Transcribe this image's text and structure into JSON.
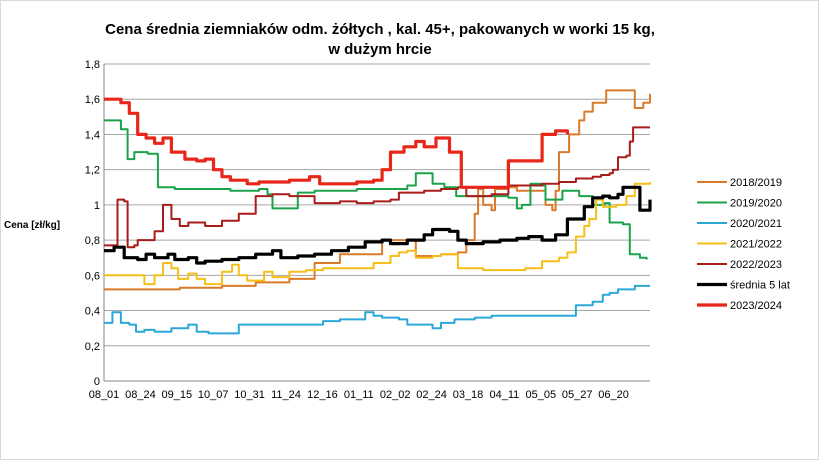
{
  "chart_data": {
    "type": "line",
    "title_line1": "Cena średnia ziemniaków odm. żółtych , kal. 45+, pakowanych w worki 15 kg,",
    "title_line2": "w dużym hrcie",
    "ylabel": "Cena [zł/kg]",
    "xlabel": "",
    "ylim": [
      0,
      1.8
    ],
    "y_ticks": [
      "0",
      "0,2",
      "0,4",
      "0,6",
      "0,8",
      "1",
      "1,2",
      "1,4",
      "1,6",
      "1,8"
    ],
    "x_ticks": [
      "08_01",
      "08_24",
      "09_15",
      "10_07",
      "10_31",
      "11_24",
      "12_16",
      "01_11",
      "02_02",
      "02_24",
      "03_18",
      "04_11",
      "05_05",
      "05_27",
      "06_20"
    ],
    "grid": "horizontal",
    "legend_position": "right",
    "x_domain": [
      0,
      324
    ],
    "series": [
      {
        "name": "2018/2019",
        "color": "#d97b2a",
        "width": 2,
        "points": [
          [
            0,
            0.52
          ],
          [
            30,
            0.52
          ],
          [
            45,
            0.53
          ],
          [
            70,
            0.54
          ],
          [
            90,
            0.56
          ],
          [
            110,
            0.58
          ],
          [
            125,
            0.67
          ],
          [
            140,
            0.72
          ],
          [
            165,
            0.8
          ],
          [
            175,
            0.8
          ],
          [
            185,
            0.71
          ],
          [
            200,
            0.72
          ],
          [
            210,
            0.73
          ],
          [
            215,
            0.8
          ],
          [
            220,
            0.95
          ],
          [
            222,
            1.09
          ],
          [
            225,
            1.0
          ],
          [
            230,
            0.97
          ],
          [
            232,
            1.09
          ],
          [
            240,
            1.1
          ],
          [
            245,
            1.08
          ],
          [
            258,
            1.08
          ],
          [
            262,
            1.0
          ],
          [
            266,
            0.97
          ],
          [
            268,
            1.08
          ],
          [
            270,
            1.3
          ],
          [
            276,
            1.4
          ],
          [
            282,
            1.48
          ],
          [
            285,
            1.53
          ],
          [
            290,
            1.58
          ],
          [
            298,
            1.65
          ],
          [
            310,
            1.65
          ],
          [
            315,
            1.55
          ],
          [
            320,
            1.58
          ],
          [
            324,
            1.63
          ]
        ]
      },
      {
        "name": "2019/2020",
        "color": "#1aa34a",
        "width": 2,
        "points": [
          [
            0,
            1.48
          ],
          [
            10,
            1.43
          ],
          [
            14,
            1.26
          ],
          [
            18,
            1.3
          ],
          [
            26,
            1.29
          ],
          [
            32,
            1.1
          ],
          [
            42,
            1.09
          ],
          [
            75,
            1.08
          ],
          [
            92,
            1.09
          ],
          [
            97,
            1.06
          ],
          [
            100,
            0.98
          ],
          [
            108,
            0.98
          ],
          [
            115,
            1.07
          ],
          [
            125,
            1.08
          ],
          [
            150,
            1.09
          ],
          [
            180,
            1.11
          ],
          [
            185,
            1.18
          ],
          [
            195,
            1.12
          ],
          [
            202,
            1.1
          ],
          [
            209,
            1.05
          ],
          [
            215,
            1.05
          ],
          [
            240,
            1.04
          ],
          [
            245,
            0.98
          ],
          [
            248,
            1.0
          ],
          [
            253,
            1.12
          ],
          [
            260,
            1.11
          ],
          [
            262,
            1.03
          ],
          [
            268,
            1.03
          ],
          [
            272,
            1.08
          ],
          [
            282,
            1.05
          ],
          [
            290,
            1.0
          ],
          [
            297,
            1.01
          ],
          [
            300,
            0.9
          ],
          [
            308,
            0.89
          ],
          [
            312,
            0.72
          ],
          [
            318,
            0.7
          ],
          [
            322,
            0.69
          ]
        ]
      },
      {
        "name": "2020/2021",
        "color": "#2ba7d8",
        "width": 2,
        "points": [
          [
            0,
            0.33
          ],
          [
            5,
            0.39
          ],
          [
            10,
            0.33
          ],
          [
            15,
            0.32
          ],
          [
            19,
            0.28
          ],
          [
            24,
            0.29
          ],
          [
            30,
            0.28
          ],
          [
            40,
            0.3
          ],
          [
            50,
            0.32
          ],
          [
            55,
            0.28
          ],
          [
            62,
            0.27
          ],
          [
            75,
            0.27
          ],
          [
            80,
            0.32
          ],
          [
            100,
            0.32
          ],
          [
            120,
            0.32
          ],
          [
            130,
            0.34
          ],
          [
            140,
            0.35
          ],
          [
            150,
            0.35
          ],
          [
            155,
            0.39
          ],
          [
            160,
            0.37
          ],
          [
            165,
            0.36
          ],
          [
            175,
            0.35
          ],
          [
            180,
            0.32
          ],
          [
            195,
            0.3
          ],
          [
            200,
            0.33
          ],
          [
            208,
            0.35
          ],
          [
            220,
            0.36
          ],
          [
            230,
            0.37
          ],
          [
            270,
            0.37
          ],
          [
            280,
            0.43
          ],
          [
            290,
            0.45
          ],
          [
            296,
            0.49
          ],
          [
            300,
            0.5
          ],
          [
            305,
            0.52
          ],
          [
            315,
            0.54
          ],
          [
            324,
            0.54
          ]
        ]
      },
      {
        "name": "2021/2022",
        "color": "#f5bf18",
        "width": 2,
        "points": [
          [
            0,
            0.6
          ],
          [
            20,
            0.6
          ],
          [
            24,
            0.55
          ],
          [
            30,
            0.6
          ],
          [
            35,
            0.67
          ],
          [
            40,
            0.64
          ],
          [
            44,
            0.58
          ],
          [
            50,
            0.61
          ],
          [
            55,
            0.58
          ],
          [
            60,
            0.55
          ],
          [
            70,
            0.62
          ],
          [
            76,
            0.66
          ],
          [
            80,
            0.6
          ],
          [
            85,
            0.57
          ],
          [
            90,
            0.57
          ],
          [
            95,
            0.62
          ],
          [
            100,
            0.59
          ],
          [
            110,
            0.62
          ],
          [
            120,
            0.63
          ],
          [
            130,
            0.64
          ],
          [
            150,
            0.64
          ],
          [
            160,
            0.67
          ],
          [
            170,
            0.71
          ],
          [
            175,
            0.73
          ],
          [
            180,
            0.74
          ],
          [
            185,
            0.7
          ],
          [
            195,
            0.71
          ],
          [
            200,
            0.72
          ],
          [
            210,
            0.64
          ],
          [
            225,
            0.63
          ],
          [
            250,
            0.64
          ],
          [
            260,
            0.68
          ],
          [
            270,
            0.7
          ],
          [
            275,
            0.73
          ],
          [
            280,
            0.82
          ],
          [
            285,
            0.88
          ],
          [
            288,
            0.92
          ],
          [
            292,
            1.03
          ],
          [
            296,
            0.99
          ],
          [
            304,
            1.0
          ],
          [
            310,
            1.05
          ],
          [
            315,
            1.12
          ],
          [
            324,
            1.13
          ]
        ]
      },
      {
        "name": "2022/2023",
        "color": "#a81c1c",
        "width": 2,
        "points": [
          [
            0,
            0.77
          ],
          [
            6,
            0.77
          ],
          [
            8,
            1.03
          ],
          [
            12,
            1.02
          ],
          [
            14,
            0.76
          ],
          [
            18,
            0.77
          ],
          [
            20,
            0.8
          ],
          [
            25,
            0.8
          ],
          [
            30,
            0.85
          ],
          [
            35,
            1.0
          ],
          [
            40,
            0.92
          ],
          [
            45,
            0.88
          ],
          [
            50,
            0.9
          ],
          [
            60,
            0.88
          ],
          [
            70,
            0.91
          ],
          [
            80,
            0.95
          ],
          [
            85,
            0.95
          ],
          [
            90,
            1.05
          ],
          [
            100,
            1.06
          ],
          [
            110,
            1.05
          ],
          [
            120,
            1.05
          ],
          [
            125,
            1.01
          ],
          [
            140,
            1.02
          ],
          [
            150,
            1.01
          ],
          [
            160,
            1.02
          ],
          [
            170,
            1.03
          ],
          [
            175,
            1.07
          ],
          [
            190,
            1.08
          ],
          [
            200,
            1.09
          ],
          [
            210,
            1.1
          ],
          [
            215,
            1.05
          ],
          [
            230,
            1.06
          ],
          [
            240,
            1.11
          ],
          [
            250,
            1.11
          ],
          [
            260,
            1.12
          ],
          [
            270,
            1.13
          ],
          [
            280,
            1.15
          ],
          [
            290,
            1.16
          ],
          [
            295,
            1.17
          ],
          [
            300,
            1.18
          ],
          [
            302,
            1.2
          ],
          [
            305,
            1.27
          ],
          [
            310,
            1.28
          ],
          [
            312,
            1.36
          ],
          [
            314,
            1.44
          ],
          [
            324,
            1.44
          ]
        ]
      },
      {
        "name": "średnia 5 lat",
        "color": "#000000",
        "width": 3.2,
        "points": [
          [
            0,
            0.74
          ],
          [
            6,
            0.76
          ],
          [
            12,
            0.7
          ],
          [
            20,
            0.69
          ],
          [
            25,
            0.72
          ],
          [
            30,
            0.7
          ],
          [
            38,
            0.72
          ],
          [
            42,
            0.69
          ],
          [
            50,
            0.7
          ],
          [
            55,
            0.67
          ],
          [
            60,
            0.68
          ],
          [
            70,
            0.69
          ],
          [
            80,
            0.7
          ],
          [
            90,
            0.72
          ],
          [
            100,
            0.74
          ],
          [
            105,
            0.7
          ],
          [
            115,
            0.71
          ],
          [
            125,
            0.72
          ],
          [
            135,
            0.74
          ],
          [
            145,
            0.76
          ],
          [
            155,
            0.79
          ],
          [
            165,
            0.8
          ],
          [
            170,
            0.78
          ],
          [
            180,
            0.8
          ],
          [
            190,
            0.83
          ],
          [
            195,
            0.86
          ],
          [
            205,
            0.85
          ],
          [
            210,
            0.8
          ],
          [
            215,
            0.78
          ],
          [
            225,
            0.79
          ],
          [
            235,
            0.8
          ],
          [
            245,
            0.81
          ],
          [
            252,
            0.82
          ],
          [
            260,
            0.8
          ],
          [
            268,
            0.83
          ],
          [
            275,
            0.92
          ],
          [
            285,
            0.99
          ],
          [
            290,
            1.04
          ],
          [
            296,
            1.05
          ],
          [
            300,
            1.04
          ],
          [
            305,
            1.06
          ],
          [
            308,
            1.1
          ],
          [
            312,
            1.1
          ],
          [
            316,
            1.1
          ],
          [
            318,
            0.97
          ],
          [
            322,
            0.97
          ],
          [
            324,
            1.03
          ]
        ]
      },
      {
        "name": "2023/2024",
        "color": "#e8261a",
        "width": 3.2,
        "points": [
          [
            0,
            1.6
          ],
          [
            10,
            1.58
          ],
          [
            15,
            1.52
          ],
          [
            20,
            1.4
          ],
          [
            25,
            1.38
          ],
          [
            30,
            1.35
          ],
          [
            35,
            1.38
          ],
          [
            40,
            1.3
          ],
          [
            48,
            1.26
          ],
          [
            55,
            1.25
          ],
          [
            60,
            1.26
          ],
          [
            65,
            1.2
          ],
          [
            70,
            1.16
          ],
          [
            75,
            1.14
          ],
          [
            80,
            1.14
          ],
          [
            85,
            1.12
          ],
          [
            92,
            1.13
          ],
          [
            100,
            1.13
          ],
          [
            110,
            1.14
          ],
          [
            118,
            1.14
          ],
          [
            122,
            1.16
          ],
          [
            128,
            1.12
          ],
          [
            140,
            1.12
          ],
          [
            150,
            1.13
          ],
          [
            160,
            1.14
          ],
          [
            165,
            1.2
          ],
          [
            170,
            1.3
          ],
          [
            178,
            1.33
          ],
          [
            185,
            1.36
          ],
          [
            190,
            1.33
          ],
          [
            197,
            1.38
          ],
          [
            205,
            1.3
          ],
          [
            212,
            1.1
          ],
          [
            220,
            1.1
          ],
          [
            232,
            1.1
          ],
          [
            240,
            1.25
          ],
          [
            250,
            1.25
          ],
          [
            260,
            1.4
          ],
          [
            268,
            1.42
          ],
          [
            275,
            1.4
          ]
        ]
      }
    ]
  }
}
